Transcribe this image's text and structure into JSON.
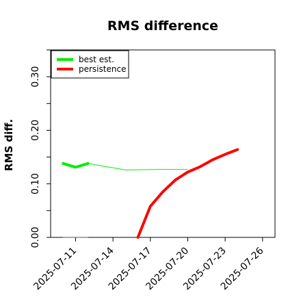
{
  "chart_data": {
    "type": "line",
    "title": "RMS difference",
    "xlabel": "",
    "ylabel": "RMS diff.",
    "xlim": [
      "2025-07-09",
      "2025-07-27"
    ],
    "ylim": [
      0,
      0.35
    ],
    "x_ticks": [
      "2025-07-11",
      "2025-07-14",
      "2025-07-17",
      "2025-07-20",
      "2025-07-23",
      "2025-07-26"
    ],
    "y_ticks": [
      0.0,
      0.1,
      0.2,
      0.3
    ],
    "y_tick_labels": [
      "0.00",
      "0.10",
      "0.20",
      "0.30"
    ],
    "legend_position": "top-left",
    "grid": false,
    "series": [
      {
        "name": "best est.",
        "color": "#00ee00",
        "x": [
          "2025-07-10",
          "2025-07-11",
          "2025-07-12",
          "2025-07-14",
          "2025-07-15",
          "2025-07-18",
          "2025-07-20"
        ],
        "y": [
          0.138,
          0.131,
          0.138,
          0.13,
          0.126,
          0.127,
          0.127
        ],
        "thick_until": "2025-07-12"
      },
      {
        "name": "persistence",
        "color": "#ff0000",
        "x": [
          "2025-07-16",
          "2025-07-17",
          "2025-07-18",
          "2025-07-19",
          "2025-07-20",
          "2025-07-21",
          "2025-07-22",
          "2025-07-23",
          "2025-07-24"
        ],
        "y": [
          0.0,
          0.058,
          0.085,
          0.107,
          0.122,
          0.132,
          0.145,
          0.155,
          0.164
        ]
      },
      {
        "name": "",
        "color": "#555555",
        "x": [
          "2025-07-10",
          "2025-07-12"
        ],
        "y": [
          0.0,
          0.0
        ]
      }
    ]
  }
}
